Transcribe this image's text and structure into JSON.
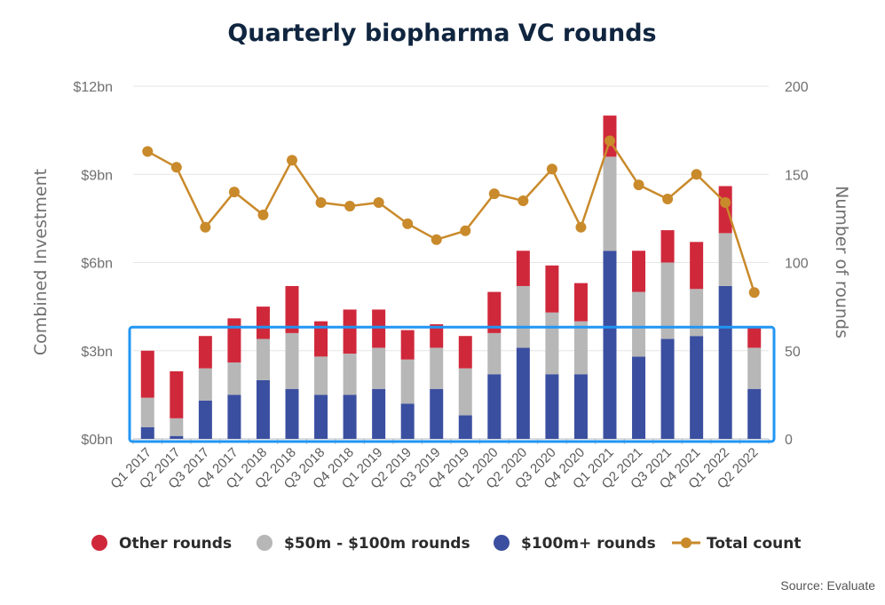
{
  "chart_data": {
    "type": "bar",
    "stacked": true,
    "title": "Quarterly biopharma VC rounds",
    "ylabel_left": "Combined Investment",
    "ylabel_right": "Number of rounds",
    "ylim_left": [
      0,
      12
    ],
    "ylim_right": [
      0,
      200
    ],
    "yticks_left": [
      "$0bn",
      "$3bn",
      "$6bn",
      "$9bn",
      "$12bn"
    ],
    "yticks_right": [
      "0",
      "50",
      "100",
      "150",
      "200"
    ],
    "grid": true,
    "legend_position": "bottom",
    "categories": [
      "Q1 2017",
      "Q2 2017",
      "Q3 2017",
      "Q4 2017",
      "Q1 2018",
      "Q2 2018",
      "Q3 2018",
      "Q4 2018",
      "Q1 2019",
      "Q2 2019",
      "Q3 2019",
      "Q4 2019",
      "Q1 2020",
      "Q2 2020",
      "Q3 2020",
      "Q4 2020",
      "Q1 2021",
      "Q2 2021",
      "Q3 2021",
      "Q4 2021",
      "Q1 2022",
      "Q2 2022"
    ],
    "series": [
      {
        "name": "$100m+ rounds",
        "axis": "left",
        "kind": "bar",
        "color": "#3b4fa0",
        "values": [
          0.4,
          0.1,
          1.3,
          1.5,
          2.0,
          1.7,
          1.5,
          1.5,
          1.7,
          1.2,
          1.7,
          0.8,
          2.2,
          3.1,
          2.2,
          2.2,
          6.4,
          2.8,
          3.4,
          3.5,
          5.2,
          1.7
        ]
      },
      {
        "name": "$50m - $100m rounds",
        "axis": "left",
        "kind": "bar",
        "color": "#b7b7b7",
        "values": [
          1.0,
          0.6,
          1.1,
          1.1,
          1.4,
          1.9,
          1.3,
          1.4,
          1.4,
          1.5,
          1.4,
          1.6,
          1.4,
          2.1,
          2.1,
          1.8,
          3.2,
          2.2,
          2.6,
          1.6,
          1.8,
          1.4
        ]
      },
      {
        "name": "Other rounds",
        "axis": "left",
        "kind": "bar",
        "color": "#d0283b",
        "values": [
          1.6,
          1.6,
          1.1,
          1.5,
          1.1,
          1.6,
          1.2,
          1.5,
          1.3,
          1.0,
          0.8,
          1.1,
          1.4,
          1.2,
          1.6,
          1.3,
          1.4,
          1.4,
          1.1,
          1.6,
          1.6,
          0.7
        ]
      },
      {
        "name": "Total count",
        "axis": "right",
        "kind": "line",
        "color": "#c98a2b",
        "values": [
          163,
          154,
          120,
          140,
          127,
          158,
          134,
          132,
          134,
          122,
          113,
          118,
          139,
          135,
          153,
          120,
          169,
          144,
          136,
          150,
          134,
          83
        ]
      }
    ],
    "legend": [
      "Other rounds",
      "$50m - $100m rounds",
      "$100m+ rounds",
      "Total count"
    ],
    "highlight_box": {
      "from": 0,
      "to": 3.8,
      "color": "#2196f3"
    },
    "source": "Source: Evaluate"
  }
}
